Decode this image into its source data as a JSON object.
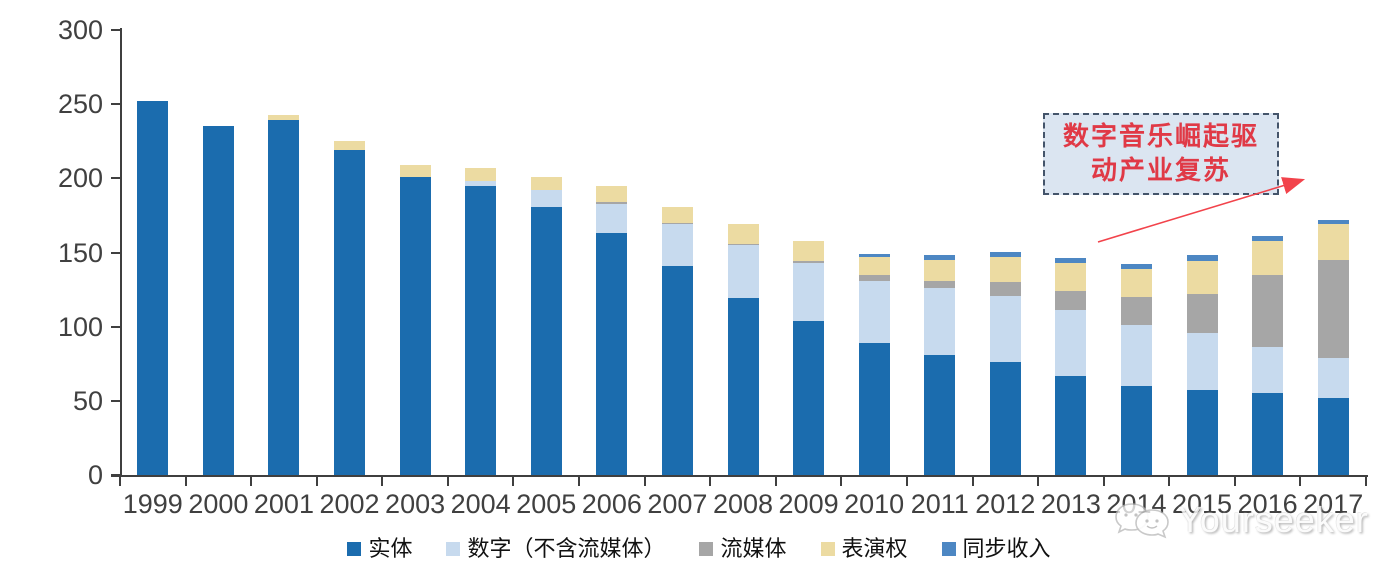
{
  "chart_data": {
    "type": "bar",
    "stacked": true,
    "title": "",
    "xlabel": "",
    "ylabel": "",
    "ylim": [
      0,
      300
    ],
    "yticks": [
      0,
      50,
      100,
      150,
      200,
      250,
      300
    ],
    "grid": false,
    "legend_position": "bottom",
    "categories": [
      "1999",
      "2000",
      "2001",
      "2002",
      "2003",
      "2004",
      "2005",
      "2006",
      "2007",
      "2008",
      "2009",
      "2010",
      "2011",
      "2012",
      "2013",
      "2014",
      "2015",
      "2016",
      "2017"
    ],
    "series": [
      {
        "name": "实体",
        "color": "#1B6CAE",
        "values": [
          252,
          235,
          239,
          219,
          201,
          195,
          181,
          163,
          141,
          119,
          104,
          89,
          81,
          76,
          67,
          60,
          57,
          55,
          52
        ]
      },
      {
        "name": "数字（不含流媒体）",
        "color": "#C7DAEE",
        "values": [
          0,
          0,
          0,
          0,
          0,
          3,
          11,
          20,
          28,
          36,
          39,
          42,
          45,
          45,
          44,
          41,
          39,
          31,
          27
        ]
      },
      {
        "name": "流媒体",
        "color": "#A6A6A6",
        "values": [
          0,
          0,
          0,
          0,
          0,
          0,
          0,
          1,
          1,
          1,
          1,
          4,
          5,
          9,
          13,
          19,
          26,
          49,
          66
        ]
      },
      {
        "name": "表演权",
        "color": "#ECDBA2",
        "values": [
          0,
          0,
          4,
          6,
          8,
          9,
          9,
          11,
          11,
          13,
          14,
          12,
          14,
          17,
          19,
          19,
          22,
          23,
          24
        ]
      },
      {
        "name": "同步收入",
        "color": "#4D87C3",
        "values": [
          0,
          0,
          0,
          0,
          0,
          0,
          0,
          0,
          0,
          0,
          0,
          2,
          3,
          3,
          3,
          3,
          4,
          3,
          3
        ]
      }
    ]
  },
  "annotation": {
    "line1": "数字音乐崛起驱",
    "line2": "动产业复苏",
    "text_color": "#E03946",
    "box_fill": "#DBE5F1",
    "border_color": "#44546A",
    "arrow_color": "#F2434B"
  },
  "watermark": {
    "text": "Yourseeker",
    "logo": "chat-bubbles-faces-icon"
  }
}
